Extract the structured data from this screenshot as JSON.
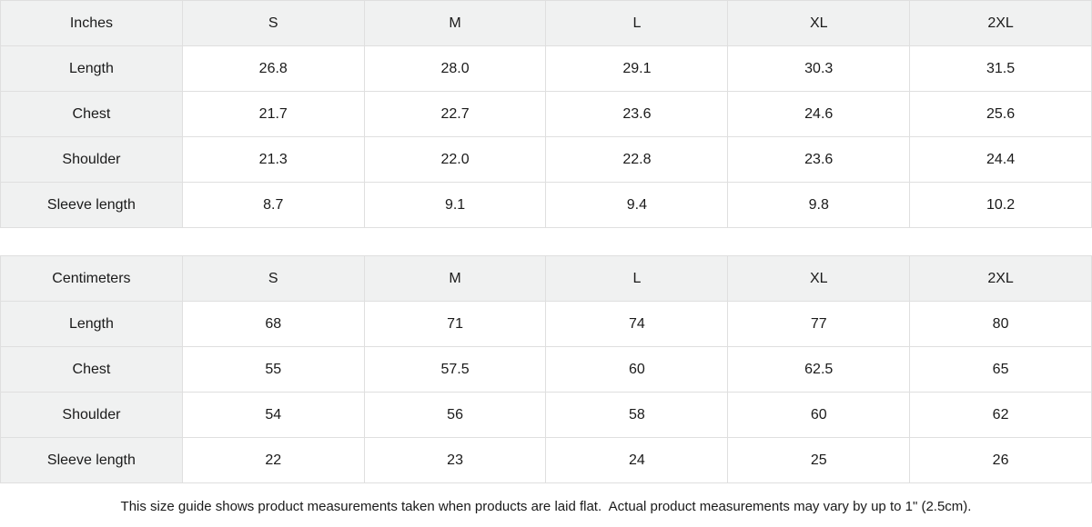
{
  "tables": [
    {
      "unit_label": "Inches",
      "columns": [
        "S",
        "M",
        "L",
        "XL",
        "2XL"
      ],
      "rows": [
        {
          "label": "Length",
          "values": [
            "26.8",
            "28.0",
            "29.1",
            "30.3",
            "31.5"
          ]
        },
        {
          "label": "Chest",
          "values": [
            "21.7",
            "22.7",
            "23.6",
            "24.6",
            "25.6"
          ]
        },
        {
          "label": "Shoulder",
          "values": [
            "21.3",
            "22.0",
            "22.8",
            "23.6",
            "24.4"
          ]
        },
        {
          "label": "Sleeve length",
          "values": [
            "8.7",
            "9.1",
            "9.4",
            "9.8",
            "10.2"
          ]
        }
      ]
    },
    {
      "unit_label": "Centimeters",
      "columns": [
        "S",
        "M",
        "L",
        "XL",
        "2XL"
      ],
      "rows": [
        {
          "label": "Length",
          "values": [
            "68",
            "71",
            "74",
            "77",
            "80"
          ]
        },
        {
          "label": "Chest",
          "values": [
            "55",
            "57.5",
            "60",
            "62.5",
            "65"
          ]
        },
        {
          "label": "Shoulder",
          "values": [
            "54",
            "56",
            "58",
            "60",
            "62"
          ]
        },
        {
          "label": "Sleeve length",
          "values": [
            "22",
            "23",
            "24",
            "25",
            "26"
          ]
        }
      ]
    }
  ],
  "footer": {
    "note": "This size guide shows product measurements taken when products are laid flat.  Actual product measurements may vary by up to 1\" (2.5cm)."
  },
  "colors": {
    "header_bg": "#f0f1f1",
    "cell_bg": "#ffffff",
    "border": "#dfdfdf",
    "text": "#1a1a1a"
  },
  "chart_data": [
    {
      "type": "table",
      "title": "Inches",
      "columns": [
        "Inches",
        "S",
        "M",
        "L",
        "XL",
        "2XL"
      ],
      "rows": [
        [
          "Length",
          26.8,
          28.0,
          29.1,
          30.3,
          31.5
        ],
        [
          "Chest",
          21.7,
          22.7,
          23.6,
          24.6,
          25.6
        ],
        [
          "Shoulder",
          21.3,
          22.0,
          22.8,
          23.6,
          24.4
        ],
        [
          "Sleeve length",
          8.7,
          9.1,
          9.4,
          9.8,
          10.2
        ]
      ]
    },
    {
      "type": "table",
      "title": "Centimeters",
      "columns": [
        "Centimeters",
        "S",
        "M",
        "L",
        "XL",
        "2XL"
      ],
      "rows": [
        [
          "Length",
          68,
          71,
          74,
          77,
          80
        ],
        [
          "Chest",
          55,
          57.5,
          60,
          62.5,
          65
        ],
        [
          "Shoulder",
          54,
          56,
          58,
          60,
          62
        ],
        [
          "Sleeve length",
          22,
          23,
          24,
          25,
          26
        ]
      ]
    }
  ]
}
